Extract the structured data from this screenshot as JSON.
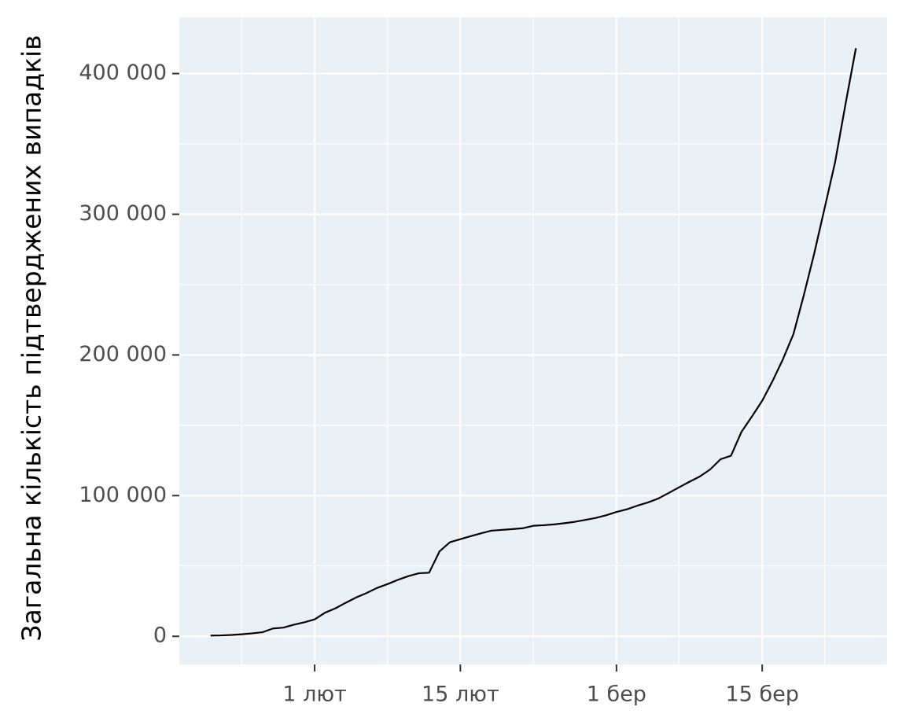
{
  "chart_data": {
    "type": "line",
    "y_label": "Загальна кількість підтверджених випадків",
    "x": [
      "01-22",
      "01-23",
      "01-24",
      "01-25",
      "01-26",
      "01-27",
      "01-28",
      "01-29",
      "01-30",
      "01-31",
      "02-01",
      "02-02",
      "02-03",
      "02-04",
      "02-05",
      "02-06",
      "02-07",
      "02-08",
      "02-09",
      "02-10",
      "02-11",
      "02-12",
      "02-13",
      "02-14",
      "02-15",
      "02-16",
      "02-17",
      "02-18",
      "02-19",
      "02-20",
      "02-21",
      "02-22",
      "02-23",
      "02-24",
      "02-25",
      "02-26",
      "02-27",
      "02-28",
      "02-29",
      "03-01",
      "03-02",
      "03-03",
      "03-04",
      "03-05",
      "03-06",
      "03-07",
      "03-08",
      "03-09",
      "03-10",
      "03-11",
      "03-12",
      "03-13",
      "03-14",
      "03-15",
      "03-16",
      "03-17",
      "03-18",
      "03-19",
      "03-20",
      "03-21",
      "03-22",
      "03-23",
      "03-24"
    ],
    "values": [
      555,
      654,
      941,
      1434,
      2118,
      2927,
      5578,
      6166,
      8234,
      9927,
      12038,
      16787,
      19881,
      23892,
      27635,
      30794,
      34391,
      37120,
      40150,
      42762,
      44802,
      45221,
      60368,
      66885,
      69030,
      71224,
      73258,
      75136,
      75639,
      76197,
      76819,
      78572,
      78958,
      79561,
      80406,
      81388,
      82746,
      84112,
      86011,
      88369,
      90306,
      92840,
      95120,
      97886,
      101801,
      105847,
      109821,
      113590,
      118620,
      125875,
      128352,
      145205,
      156101,
      167454,
      181574,
      197102,
      214821,
      242570,
      272208,
      304507,
      336953,
      378235,
      418045
    ],
    "color": "#000000",
    "xlim": [
      "01-19",
      "03-27"
    ],
    "xticks": [
      {
        "value": "02-01",
        "label": "1 лют"
      },
      {
        "value": "02-15",
        "label": "15 лют"
      },
      {
        "value": "03-01",
        "label": "1 бер"
      },
      {
        "value": "03-15",
        "label": "15 бер"
      }
    ],
    "ylim": [
      -20000,
      440000
    ],
    "yticks": [
      0,
      {
        "value": 100000,
        "label": "100 000"
      },
      {
        "value": 200000,
        "label": "200 000"
      },
      {
        "value": 300000,
        "label": "300 000"
      },
      {
        "value": 400000,
        "label": "400 000"
      }
    ],
    "grid": true
  }
}
